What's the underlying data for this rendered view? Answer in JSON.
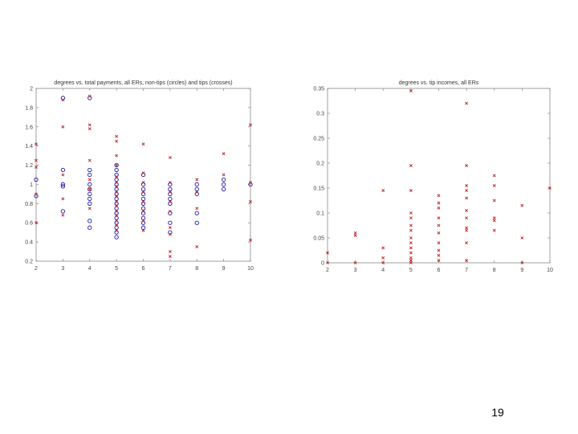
{
  "slide": {
    "page_number": "19"
  },
  "chart_data": [
    {
      "type": "scatter",
      "title": "degrees vs. total payments, all ERs, non-tips (circles) and tips (crosses)",
      "xlabel": "",
      "ylabel": "",
      "xlim": [
        2,
        10
      ],
      "ylim": [
        0.2,
        2
      ],
      "xticks": [
        2,
        3,
        4,
        5,
        6,
        7,
        8,
        9,
        10
      ],
      "xtick_labels": [
        "2",
        "3",
        "4",
        "5",
        "6",
        "7",
        "8",
        "9",
        "10"
      ],
      "yticks": [
        0.2,
        0.4,
        0.6,
        0.8,
        1,
        1.2,
        1.4,
        1.6,
        1.8,
        2
      ],
      "ytick_labels": [
        "0.2",
        "0.4",
        "0.6",
        "0.8",
        "1",
        "1.2",
        "1.4",
        "1.6",
        "1.8",
        "2"
      ],
      "grid": false,
      "series": [
        {
          "name": "non-tips (circles)",
          "marker": "circle",
          "color": "#1a1aa8",
          "points": [
            [
              2,
              0.88
            ],
            [
              2,
              1.05
            ],
            [
              3,
              1.9
            ],
            [
              3,
              1.15
            ],
            [
              3,
              1.0
            ],
            [
              3,
              0.98
            ],
            [
              3,
              0.72
            ],
            [
              4,
              1.9
            ],
            [
              4,
              1.15
            ],
            [
              4,
              1.1
            ],
            [
              4,
              1.0
            ],
            [
              4,
              0.95
            ],
            [
              4,
              0.9
            ],
            [
              4,
              0.85
            ],
            [
              4,
              0.8
            ],
            [
              4,
              0.62
            ],
            [
              4,
              0.55
            ],
            [
              5,
              1.2
            ],
            [
              5,
              1.15
            ],
            [
              5,
              1.1
            ],
            [
              5,
              1.05
            ],
            [
              5,
              1.0
            ],
            [
              5,
              0.95
            ],
            [
              5,
              0.9
            ],
            [
              5,
              0.85
            ],
            [
              5,
              0.8
            ],
            [
              5,
              0.75
            ],
            [
              5,
              0.7
            ],
            [
              5,
              0.65
            ],
            [
              5,
              0.6
            ],
            [
              5,
              0.55
            ],
            [
              5,
              0.5
            ],
            [
              5,
              0.45
            ],
            [
              6,
              1.1
            ],
            [
              6,
              1.0
            ],
            [
              6,
              0.95
            ],
            [
              6,
              0.9
            ],
            [
              6,
              0.85
            ],
            [
              6,
              0.8
            ],
            [
              6,
              0.75
            ],
            [
              6,
              0.7
            ],
            [
              6,
              0.65
            ],
            [
              6,
              0.6
            ],
            [
              6,
              0.55
            ],
            [
              7,
              1.0
            ],
            [
              7,
              0.95
            ],
            [
              7,
              0.9
            ],
            [
              7,
              0.85
            ],
            [
              7,
              0.8
            ],
            [
              7,
              0.7
            ],
            [
              7,
              0.6
            ],
            [
              7,
              0.5
            ],
            [
              8,
              1.0
            ],
            [
              8,
              0.95
            ],
            [
              8,
              0.9
            ],
            [
              8,
              0.7
            ],
            [
              8,
              0.6
            ],
            [
              9,
              1.05
            ],
            [
              9,
              1.0
            ],
            [
              9,
              0.95
            ],
            [
              10,
              1.0
            ]
          ]
        },
        {
          "name": "tips (crosses)",
          "marker": "cross",
          "color": "#c02020",
          "points": [
            [
              2,
              1.42
            ],
            [
              2,
              1.25
            ],
            [
              2,
              1.18
            ],
            [
              2,
              0.9
            ],
            [
              2,
              0.6
            ],
            [
              3,
              1.88
            ],
            [
              3,
              1.6
            ],
            [
              3,
              1.1
            ],
            [
              3,
              0.85
            ],
            [
              3,
              0.68
            ],
            [
              4,
              1.92
            ],
            [
              4,
              1.62
            ],
            [
              4,
              1.58
            ],
            [
              4,
              1.25
            ],
            [
              4,
              1.05
            ],
            [
              4,
              0.95
            ],
            [
              4,
              0.75
            ],
            [
              5,
              1.5
            ],
            [
              5,
              1.45
            ],
            [
              5,
              1.3
            ],
            [
              5,
              1.2
            ],
            [
              5,
              1.08
            ],
            [
              5,
              1.02
            ],
            [
              5,
              0.98
            ],
            [
              5,
              0.92
            ],
            [
              5,
              0.88
            ],
            [
              5,
              0.82
            ],
            [
              5,
              0.78
            ],
            [
              5,
              0.72
            ],
            [
              5,
              0.68
            ],
            [
              5,
              0.62
            ],
            [
              5,
              0.58
            ],
            [
              5,
              0.52
            ],
            [
              6,
              1.42
            ],
            [
              6,
              1.12
            ],
            [
              6,
              1.02
            ],
            [
              6,
              0.92
            ],
            [
              6,
              0.82
            ],
            [
              6,
              0.72
            ],
            [
              6,
              0.62
            ],
            [
              6,
              0.52
            ],
            [
              7,
              1.28
            ],
            [
              7,
              1.02
            ],
            [
              7,
              0.92
            ],
            [
              7,
              0.82
            ],
            [
              7,
              0.72
            ],
            [
              7,
              0.55
            ],
            [
              7,
              0.48
            ],
            [
              7,
              0.3
            ],
            [
              7,
              0.25
            ],
            [
              8,
              1.05
            ],
            [
              8,
              0.92
            ],
            [
              8,
              0.75
            ],
            [
              8,
              0.35
            ],
            [
              9,
              1.32
            ],
            [
              9,
              1.1
            ],
            [
              10,
              1.62
            ],
            [
              10,
              1.02
            ],
            [
              10,
              0.82
            ],
            [
              10,
              0.42
            ]
          ]
        }
      ]
    },
    {
      "type": "scatter",
      "title": "degrees vs. tip incomes, all ERs",
      "xlabel": "",
      "ylabel": "",
      "xlim": [
        2,
        10
      ],
      "ylim": [
        0,
        0.35
      ],
      "xticks": [
        2,
        3,
        4,
        5,
        6,
        7,
        8,
        9,
        10
      ],
      "xtick_labels": [
        "2",
        "3",
        "4",
        "5",
        "6",
        "7",
        "8",
        "9",
        "10"
      ],
      "yticks": [
        0,
        0.05,
        0.1,
        0.15,
        0.2,
        0.25,
        0.3,
        0.35
      ],
      "ytick_labels": [
        "0",
        "0.05",
        "0.1",
        "0.15",
        "0.2",
        "0.25",
        "0.3",
        "0.35"
      ],
      "grid": false,
      "series": [
        {
          "name": "tips (crosses)",
          "marker": "cross",
          "color": "#c02020",
          "points": [
            [
              2,
              0.02
            ],
            [
              2,
              0.0
            ],
            [
              3,
              0.06
            ],
            [
              3,
              0.055
            ],
            [
              3,
              0.0
            ],
            [
              4,
              0.145
            ],
            [
              4,
              0.03
            ],
            [
              4,
              0.01
            ],
            [
              4,
              0.0
            ],
            [
              5,
              0.345
            ],
            [
              5,
              0.195
            ],
            [
              5,
              0.145
            ],
            [
              5,
              0.1
            ],
            [
              5,
              0.09
            ],
            [
              5,
              0.075
            ],
            [
              5,
              0.065
            ],
            [
              5,
              0.05
            ],
            [
              5,
              0.04
            ],
            [
              5,
              0.03
            ],
            [
              5,
              0.02
            ],
            [
              5,
              0.01
            ],
            [
              5,
              0.005
            ],
            [
              5,
              0.0
            ],
            [
              6,
              0.135
            ],
            [
              6,
              0.12
            ],
            [
              6,
              0.11
            ],
            [
              6,
              0.09
            ],
            [
              6,
              0.075
            ],
            [
              6,
              0.06
            ],
            [
              6,
              0.04
            ],
            [
              6,
              0.025
            ],
            [
              6,
              0.015
            ],
            [
              6,
              0.005
            ],
            [
              7,
              0.32
            ],
            [
              7,
              0.195
            ],
            [
              7,
              0.155
            ],
            [
              7,
              0.145
            ],
            [
              7,
              0.13
            ],
            [
              7,
              0.105
            ],
            [
              7,
              0.09
            ],
            [
              7,
              0.07
            ],
            [
              7,
              0.065
            ],
            [
              7,
              0.04
            ],
            [
              7,
              0.005
            ],
            [
              8,
              0.175
            ],
            [
              8,
              0.155
            ],
            [
              8,
              0.125
            ],
            [
              8,
              0.09
            ],
            [
              8,
              0.085
            ],
            [
              8,
              0.065
            ],
            [
              9,
              0.115
            ],
            [
              9,
              0.05
            ],
            [
              9,
              0.0
            ],
            [
              10,
              0.15
            ]
          ]
        }
      ]
    }
  ]
}
